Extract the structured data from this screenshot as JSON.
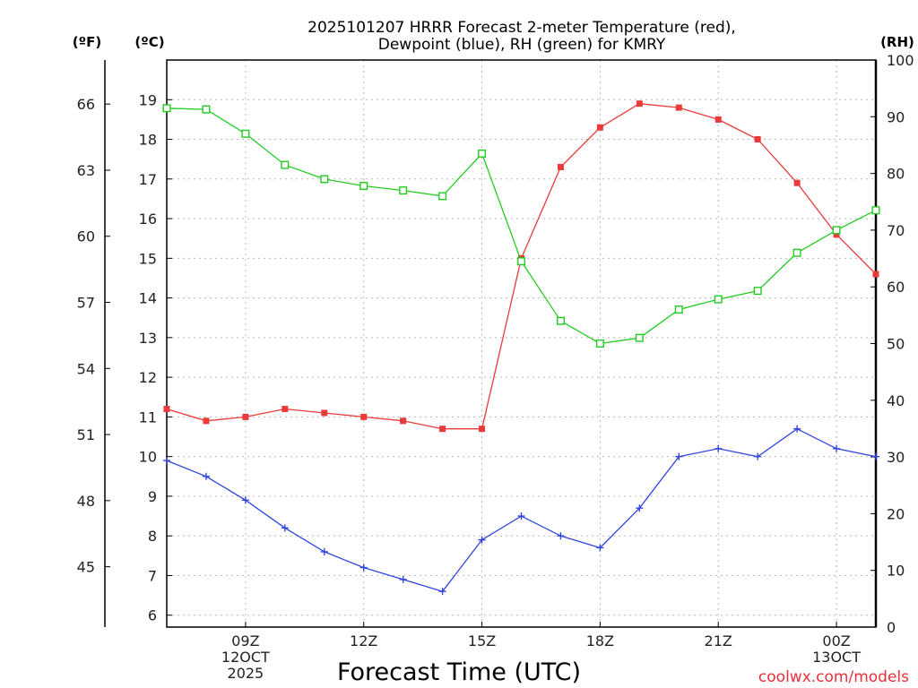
{
  "chart_data": {
    "type": "line",
    "title_lines": [
      "2025101207 HRRR Forecast 2-meter Temperature (red),",
      "Dewpoint (blue), RH (green) for KMRY"
    ],
    "xlabel": "Forecast Time (UTC)",
    "credit": "coolwx.com/models",
    "units": {
      "fahrenheit": "(ºF)",
      "celsius": "(ºC)",
      "rh": "(RH)"
    },
    "x_hours": [
      7,
      8,
      9,
      10,
      11,
      12,
      13,
      14,
      15,
      16,
      17,
      18,
      19,
      20,
      21,
      22,
      23,
      24,
      25
    ],
    "xlim": [
      7,
      25
    ],
    "x_ticks": [
      {
        "hour": 9,
        "lines": [
          "09Z",
          "12OCT",
          "2025"
        ]
      },
      {
        "hour": 12,
        "lines": [
          "12Z"
        ]
      },
      {
        "hour": 15,
        "lines": [
          "15Z"
        ]
      },
      {
        "hour": 18,
        "lines": [
          "18Z"
        ]
      },
      {
        "hour": 21,
        "lines": [
          "21Z"
        ]
      },
      {
        "hour": 24,
        "lines": [
          "00Z",
          "13OCT"
        ]
      }
    ],
    "celsius_axis": {
      "ylim": [
        5.7,
        20.0
      ],
      "ticks": [
        "6",
        "7",
        "8",
        "9",
        "10",
        "11",
        "12",
        "13",
        "14",
        "15",
        "16",
        "17",
        "18",
        "19"
      ]
    },
    "fahrenheit_axis": {
      "ticks": [
        "45",
        "48",
        "51",
        "54",
        "57",
        "60",
        "63",
        "66"
      ]
    },
    "rh_axis": {
      "ylim": [
        0,
        100
      ],
      "ticks": [
        "0",
        "10",
        "20",
        "30",
        "40",
        "50",
        "60",
        "70",
        "80",
        "90",
        "100"
      ]
    },
    "series": [
      {
        "name": "2-meter Temperature (°C)",
        "axis": "celsius",
        "color": "#ea3a3a",
        "marker": "filled-square",
        "values": [
          11.2,
          10.9,
          11.0,
          11.2,
          11.1,
          11.0,
          10.9,
          10.7,
          10.7,
          15.0,
          17.3,
          18.3,
          18.9,
          18.8,
          18.5,
          18.0,
          16.9,
          15.6,
          14.6
        ]
      },
      {
        "name": "Dewpoint (°C)",
        "axis": "celsius",
        "color": "#2f45dc",
        "marker": "plus",
        "values": [
          9.9,
          9.5,
          8.9,
          8.2,
          7.6,
          7.2,
          6.9,
          6.6,
          7.9,
          8.5,
          8.0,
          7.7,
          8.7,
          10.0,
          10.2,
          10.0,
          10.7,
          10.2,
          10.0
        ]
      },
      {
        "name": "RH (%)",
        "axis": "rh",
        "color": "#22cc22",
        "marker": "open-square",
        "values": [
          91.5,
          91.3,
          87,
          81.5,
          79,
          77.8,
          77,
          76,
          83.5,
          64.5,
          54,
          50,
          51,
          56,
          57.8,
          59.3,
          66,
          70,
          73.5
        ]
      }
    ]
  }
}
